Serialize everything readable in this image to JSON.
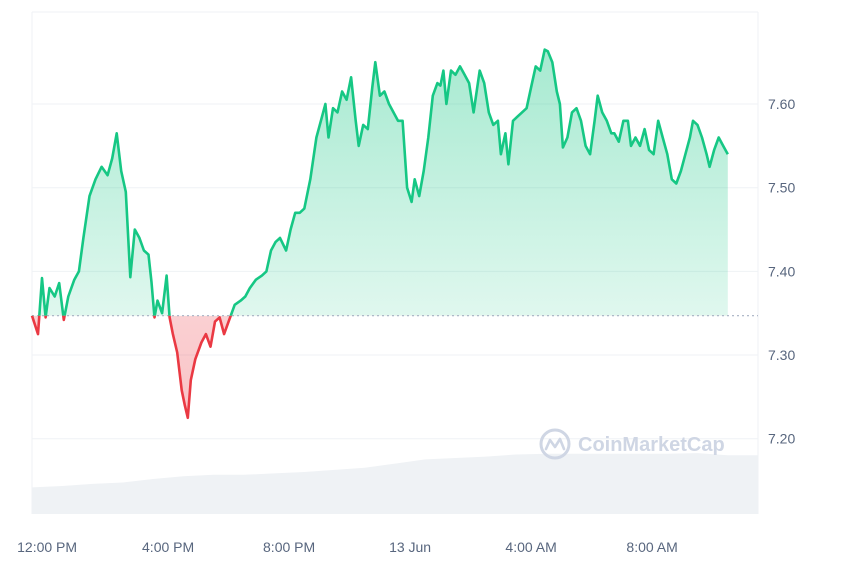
{
  "chart_data": {
    "type": "area",
    "baseline": 7.347,
    "ylim": [
      7.11,
      7.71
    ],
    "y_ticks": [
      {
        "value": 7.6,
        "label": "7.60"
      },
      {
        "value": 7.5,
        "label": "7.50"
      },
      {
        "value": 7.4,
        "label": "7.40"
      },
      {
        "value": 7.3,
        "label": "7.30"
      },
      {
        "value": 7.2,
        "label": "7.20"
      }
    ],
    "xlim": [
      0,
      24
    ],
    "x_ticks": [
      {
        "value": 0.5,
        "label": "12:00 PM"
      },
      {
        "value": 4.5,
        "label": "4:00 PM"
      },
      {
        "value": 8.5,
        "label": "8:00 PM"
      },
      {
        "value": 12.5,
        "label": "13 Jun"
      },
      {
        "value": 16.5,
        "label": "4:00 AM"
      },
      {
        "value": 20.5,
        "label": "8:00 AM"
      }
    ],
    "colors": {
      "up": "#16c784",
      "down": "#ea3943",
      "volume": "#eff2f5"
    },
    "watermark": "CoinMarketCap",
    "price": [
      [
        0.0,
        7.347
      ],
      [
        0.2,
        7.325
      ],
      [
        0.33,
        7.392
      ],
      [
        0.45,
        7.345
      ],
      [
        0.58,
        7.38
      ],
      [
        0.75,
        7.37
      ],
      [
        0.9,
        7.386
      ],
      [
        1.05,
        7.342
      ],
      [
        1.2,
        7.37
      ],
      [
        1.4,
        7.39
      ],
      [
        1.55,
        7.4
      ],
      [
        1.7,
        7.44
      ],
      [
        1.9,
        7.49
      ],
      [
        2.1,
        7.51
      ],
      [
        2.3,
        7.525
      ],
      [
        2.5,
        7.515
      ],
      [
        2.65,
        7.535
      ],
      [
        2.8,
        7.565
      ],
      [
        2.95,
        7.52
      ],
      [
        3.1,
        7.495
      ],
      [
        3.25,
        7.393
      ],
      [
        3.4,
        7.45
      ],
      [
        3.55,
        7.44
      ],
      [
        3.7,
        7.425
      ],
      [
        3.85,
        7.42
      ],
      [
        3.95,
        7.387
      ],
      [
        4.05,
        7.345
      ],
      [
        4.15,
        7.365
      ],
      [
        4.3,
        7.35
      ],
      [
        4.45,
        7.395
      ],
      [
        4.55,
        7.345
      ],
      [
        4.65,
        7.326
      ],
      [
        4.8,
        7.303
      ],
      [
        4.95,
        7.258
      ],
      [
        5.05,
        7.24
      ],
      [
        5.15,
        7.225
      ],
      [
        5.25,
        7.27
      ],
      [
        5.4,
        7.295
      ],
      [
        5.6,
        7.315
      ],
      [
        5.75,
        7.325
      ],
      [
        5.9,
        7.31
      ],
      [
        6.05,
        7.34
      ],
      [
        6.2,
        7.345
      ],
      [
        6.35,
        7.325
      ],
      [
        6.5,
        7.34
      ],
      [
        6.7,
        7.36
      ],
      [
        6.9,
        7.365
      ],
      [
        7.05,
        7.37
      ],
      [
        7.2,
        7.38
      ],
      [
        7.4,
        7.39
      ],
      [
        7.6,
        7.395
      ],
      [
        7.75,
        7.4
      ],
      [
        7.9,
        7.425
      ],
      [
        8.05,
        7.435
      ],
      [
        8.2,
        7.44
      ],
      [
        8.4,
        7.425
      ],
      [
        8.55,
        7.45
      ],
      [
        8.7,
        7.47
      ],
      [
        8.85,
        7.47
      ],
      [
        9.0,
        7.475
      ],
      [
        9.2,
        7.51
      ],
      [
        9.4,
        7.56
      ],
      [
        9.55,
        7.58
      ],
      [
        9.7,
        7.6
      ],
      [
        9.8,
        7.56
      ],
      [
        9.95,
        7.595
      ],
      [
        10.1,
        7.59
      ],
      [
        10.25,
        7.615
      ],
      [
        10.4,
        7.605
      ],
      [
        10.55,
        7.632
      ],
      [
        10.7,
        7.58
      ],
      [
        10.8,
        7.55
      ],
      [
        10.95,
        7.575
      ],
      [
        11.1,
        7.57
      ],
      [
        11.25,
        7.62
      ],
      [
        11.35,
        7.65
      ],
      [
        11.5,
        7.61
      ],
      [
        11.65,
        7.615
      ],
      [
        11.8,
        7.6
      ],
      [
        11.95,
        7.59
      ],
      [
        12.1,
        7.58
      ],
      [
        12.25,
        7.58
      ],
      [
        12.4,
        7.5
      ],
      [
        12.55,
        7.483
      ],
      [
        12.65,
        7.51
      ],
      [
        12.8,
        7.49
      ],
      [
        12.95,
        7.52
      ],
      [
        13.1,
        7.56
      ],
      [
        13.25,
        7.61
      ],
      [
        13.4,
        7.625
      ],
      [
        13.5,
        7.622
      ],
      [
        13.6,
        7.64
      ],
      [
        13.7,
        7.6
      ],
      [
        13.85,
        7.64
      ],
      [
        14.0,
        7.635
      ],
      [
        14.15,
        7.645
      ],
      [
        14.3,
        7.635
      ],
      [
        14.45,
        7.625
      ],
      [
        14.6,
        7.59
      ],
      [
        14.8,
        7.64
      ],
      [
        14.95,
        7.625
      ],
      [
        15.1,
        7.59
      ],
      [
        15.25,
        7.575
      ],
      [
        15.4,
        7.58
      ],
      [
        15.5,
        7.54
      ],
      [
        15.65,
        7.565
      ],
      [
        15.75,
        7.528
      ],
      [
        15.9,
        7.58
      ],
      [
        16.05,
        7.585
      ],
      [
        16.2,
        7.59
      ],
      [
        16.35,
        7.595
      ],
      [
        16.5,
        7.62
      ],
      [
        16.65,
        7.645
      ],
      [
        16.8,
        7.64
      ],
      [
        16.95,
        7.665
      ],
      [
        17.05,
        7.663
      ],
      [
        17.2,
        7.65
      ],
      [
        17.35,
        7.615
      ],
      [
        17.45,
        7.6
      ],
      [
        17.55,
        7.548
      ],
      [
        17.7,
        7.56
      ],
      [
        17.85,
        7.59
      ],
      [
        18.0,
        7.595
      ],
      [
        18.15,
        7.58
      ],
      [
        18.3,
        7.55
      ],
      [
        18.45,
        7.54
      ],
      [
        18.6,
        7.58
      ],
      [
        18.7,
        7.61
      ],
      [
        18.85,
        7.59
      ],
      [
        19.0,
        7.58
      ],
      [
        19.15,
        7.565
      ],
      [
        19.25,
        7.565
      ],
      [
        19.4,
        7.555
      ],
      [
        19.55,
        7.58
      ],
      [
        19.7,
        7.58
      ],
      [
        19.8,
        7.55
      ],
      [
        19.95,
        7.56
      ],
      [
        20.1,
        7.55
      ],
      [
        20.25,
        7.57
      ],
      [
        20.4,
        7.545
      ],
      [
        20.55,
        7.54
      ],
      [
        20.7,
        7.58
      ],
      [
        20.85,
        7.56
      ],
      [
        21.0,
        7.54
      ],
      [
        21.15,
        7.51
      ],
      [
        21.3,
        7.505
      ],
      [
        21.45,
        7.52
      ],
      [
        21.6,
        7.54
      ],
      [
        21.75,
        7.56
      ],
      [
        21.85,
        7.58
      ],
      [
        22.0,
        7.575
      ],
      [
        22.15,
        7.56
      ],
      [
        22.3,
        7.54
      ],
      [
        22.4,
        7.525
      ],
      [
        22.55,
        7.545
      ],
      [
        22.7,
        7.56
      ],
      [
        22.85,
        7.55
      ],
      [
        23.0,
        7.54
      ]
    ],
    "volume_relative": [
      [
        0,
        0.38
      ],
      [
        1,
        0.4
      ],
      [
        2,
        0.43
      ],
      [
        3,
        0.45
      ],
      [
        4,
        0.5
      ],
      [
        5,
        0.54
      ],
      [
        6,
        0.56
      ],
      [
        7,
        0.56
      ],
      [
        8,
        0.58
      ],
      [
        9,
        0.6
      ],
      [
        10,
        0.63
      ],
      [
        11,
        0.66
      ],
      [
        12,
        0.72
      ],
      [
        13,
        0.78
      ],
      [
        14,
        0.8
      ],
      [
        15,
        0.82
      ],
      [
        16,
        0.85
      ],
      [
        17,
        0.86
      ],
      [
        18,
        0.86
      ],
      [
        19,
        0.86
      ],
      [
        20,
        0.86
      ],
      [
        21,
        0.86
      ],
      [
        22,
        0.87
      ],
      [
        23,
        0.84
      ]
    ]
  }
}
